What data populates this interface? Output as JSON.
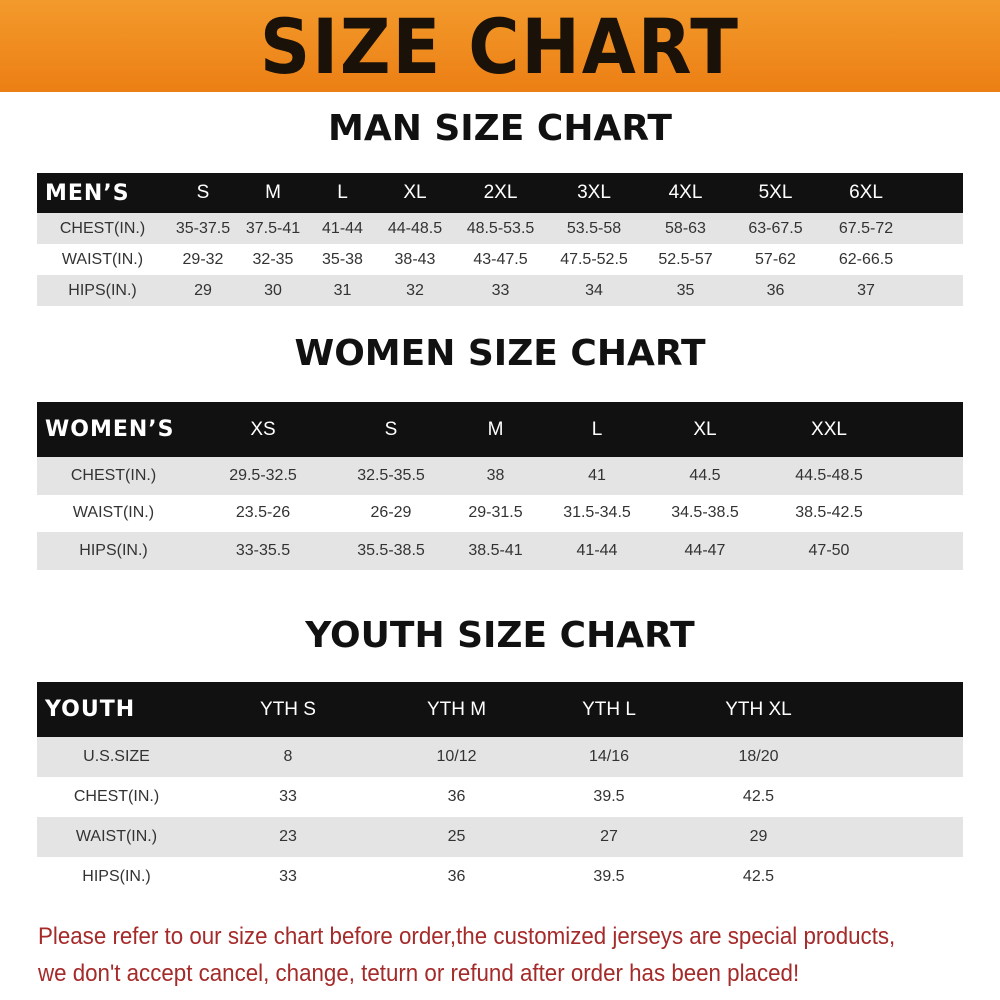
{
  "banner_title": "SIZE CHART",
  "men": {
    "title": "MAN SIZE CHART",
    "header": [
      "MEN’S",
      "S",
      "M",
      "L",
      "XL",
      "2XL",
      "3XL",
      "4XL",
      "5XL",
      "6XL"
    ],
    "rows": [
      [
        "CHEST(IN.)",
        "35-37.5",
        "37.5-41",
        "41-44",
        "44-48.5",
        "48.5-53.5",
        "53.5-58",
        "58-63",
        "63-67.5",
        "67.5-72"
      ],
      [
        "WAIST(IN.)",
        "29-32",
        "32-35",
        "35-38",
        "38-43",
        "43-47.5",
        "47.5-52.5",
        "52.5-57",
        "57-62",
        "62-66.5"
      ],
      [
        "HIPS(IN.)",
        "29",
        "30",
        "31",
        "32",
        "33",
        "34",
        "35",
        "36",
        "37"
      ]
    ]
  },
  "women": {
    "title": "WOMEN SIZE CHART",
    "header": [
      "WOMEN’S",
      "XS",
      "S",
      "M",
      "L",
      "XL",
      "XXL"
    ],
    "rows": [
      [
        "CHEST(IN.)",
        "29.5-32.5",
        "32.5-35.5",
        "38",
        "41",
        "44.5",
        "44.5-48.5"
      ],
      [
        "WAIST(IN.)",
        "23.5-26",
        "26-29",
        "29-31.5",
        "31.5-34.5",
        "34.5-38.5",
        "38.5-42.5"
      ],
      [
        "HIPS(IN.)",
        "33-35.5",
        "35.5-38.5",
        "38.5-41",
        "41-44",
        "44-47",
        "47-50"
      ]
    ]
  },
  "youth": {
    "title": "YOUTH SIZE CHART",
    "header": [
      "YOUTH",
      "YTH S",
      "YTH M",
      "YTH L",
      "YTH XL"
    ],
    "rows": [
      [
        "U.S.SIZE",
        "8",
        "10/12",
        "14/16",
        "18/20"
      ],
      [
        "CHEST(IN.)",
        "33",
        "36",
        "39.5",
        "42.5"
      ],
      [
        "WAIST(IN.)",
        "23",
        "25",
        "27",
        "29"
      ],
      [
        "HIPS(IN.)",
        "33",
        "36",
        "39.5",
        "42.5"
      ]
    ]
  },
  "footer": {
    "line1": "Please refer to our size chart before order,the customized jerseys are special products,",
    "line2": "we don't accept cancel, change, teturn or refund after order has been placed!"
  },
  "colors": {
    "banner": "#ef8a1d",
    "header_row": "#111111",
    "stripe": "#e4e4e4",
    "notice": "#a52a2a"
  }
}
